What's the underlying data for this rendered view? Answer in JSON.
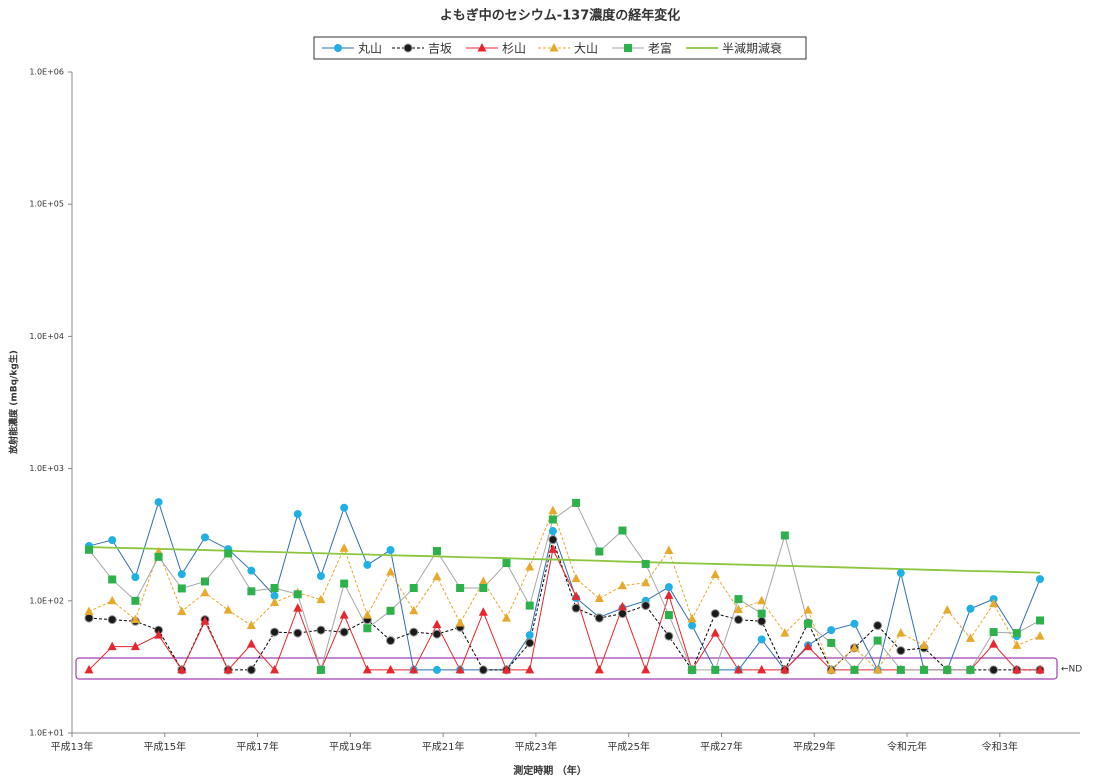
{
  "chart_data": {
    "type": "line",
    "title": "よもぎ中のセシウム-137濃度の経年変化",
    "x_label": "測定時期 （年）",
    "y_label": "放射能濃度 (mBq/kg生)",
    "log_scale": true,
    "grid": false,
    "legend_position": "top",
    "annotation": "←ND",
    "categories": [
      "平成13年",
      null,
      null,
      null,
      "平成15年",
      null,
      null,
      null,
      "平成17年",
      null,
      null,
      null,
      "平成19年",
      null,
      null,
      null,
      "平成21年",
      null,
      null,
      null,
      "平成23年",
      null,
      null,
      null,
      "平成25年",
      null,
      null,
      null,
      "平成27年",
      null,
      null,
      null,
      "平成29年",
      null,
      null,
      null,
      "令和元年",
      null,
      null,
      null,
      "令和3年",
      null
    ],
    "ylim": [
      10,
      1000000
    ],
    "yticks": [
      {
        "value": 10,
        "label": "1.0E+01"
      },
      {
        "value": 100,
        "label": "1.0E+02"
      },
      {
        "value": 1000,
        "label": "1.0E+03"
      },
      {
        "value": 10000,
        "label": "1.0E+04"
      },
      {
        "value": 100000,
        "label": "1.0E+05"
      },
      {
        "value": 1000000,
        "label": "1.0E+06"
      }
    ],
    "series": [
      {
        "name": "丸山",
        "color": "#1fb0e6",
        "line_color": "#2f6eb5",
        "line_style": "solid",
        "marker": "circle",
        "values": [
          260,
          288,
          151,
          558,
          159,
          302,
          246,
          169,
          109,
          453,
          154,
          506,
          187,
          242,
          30,
          30,
          30,
          30,
          30,
          55,
          337,
          105,
          75,
          88,
          100,
          127,
          65,
          30,
          30,
          51,
          30,
          46,
          60,
          67,
          30,
          162,
          30,
          30,
          87,
          103,
          54,
          146
        ]
      },
      {
        "name": "吉坂",
        "color": "#1a1a1a",
        "line_color": "#000000",
        "line_style": "dashed",
        "marker": "circle",
        "values": [
          74,
          72,
          70,
          60,
          30,
          72,
          30,
          30,
          58,
          57,
          60,
          58,
          72,
          50,
          58,
          56,
          63,
          30,
          30,
          48,
          290,
          88,
          74,
          80,
          92,
          54,
          30,
          80,
          72,
          70,
          30,
          68,
          30,
          44,
          65,
          42,
          44,
          30,
          30,
          30,
          30,
          30
        ]
      },
      {
        "name": "杉山",
        "color": "#e8262d",
        "line_color": "#e8262d",
        "line_style": "solid",
        "marker": "triangle",
        "values": [
          30,
          45,
          45,
          55,
          30,
          70,
          30,
          47,
          30,
          88,
          30,
          78,
          30,
          30,
          30,
          66,
          30,
          82,
          30,
          30,
          245,
          108,
          30,
          90,
          30,
          110,
          30,
          57,
          30,
          30,
          30,
          45,
          30,
          30,
          30,
          30,
          30,
          30,
          30,
          47,
          30,
          30
        ]
      },
      {
        "name": "大山",
        "color": "#e8a82a",
        "line_color": "#e8a82a",
        "line_style": "dashed",
        "marker": "triangle",
        "values": [
          83,
          100,
          72,
          235,
          83,
          115,
          85,
          65,
          97,
          115,
          102,
          250,
          78,
          165,
          84,
          152,
          68,
          140,
          74,
          180,
          480,
          147,
          104,
          130,
          137,
          240,
          73,
          158,
          86,
          100,
          57,
          85,
          30,
          44,
          30,
          57,
          46,
          85,
          52,
          95,
          46,
          54
        ]
      },
      {
        "name": "老富",
        "color": "#2db14b",
        "line_color": "#a6a6a6",
        "line_style": "solid",
        "marker": "square",
        "values": [
          243,
          145,
          100,
          215,
          124,
          140,
          228,
          118,
          125,
          112,
          30,
          135,
          62,
          84,
          125,
          238,
          125,
          125,
          193,
          92,
          412,
          550,
          236,
          340,
          190,
          78,
          30,
          30,
          103,
          80,
          312,
          67,
          48,
          30,
          50,
          30,
          30,
          30,
          30,
          58,
          57,
          71
        ]
      },
      {
        "name": "半減期減衰",
        "color": "#8cc63f",
        "line_color": "#8cc63f",
        "line_style": "solid",
        "marker": "none",
        "values": [
          255,
          252,
          250,
          247,
          244,
          242,
          239,
          236,
          234,
          231,
          229,
          226,
          224,
          221,
          219,
          217,
          214,
          212,
          210,
          207,
          205,
          203,
          201,
          198,
          196,
          194,
          192,
          190,
          188,
          186,
          184,
          182,
          180,
          178,
          176,
          174,
          172,
          170,
          168,
          167,
          165,
          163
        ]
      }
    ]
  }
}
